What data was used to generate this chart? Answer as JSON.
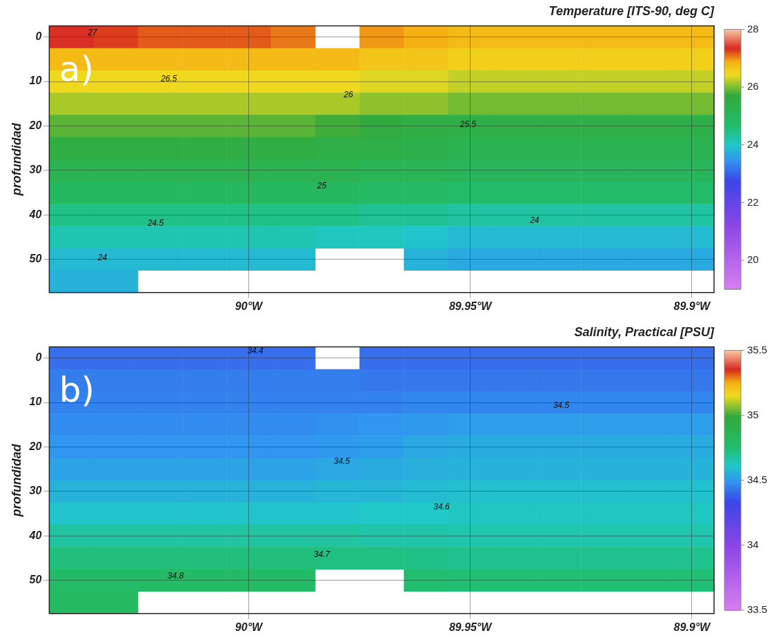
{
  "chart_data": [
    {
      "type": "heatmap",
      "title": "Temperature [ITS-90, deg C]",
      "ylabel": "profundidad",
      "x": [
        -90.04,
        -90.03,
        -90.02,
        -90.01,
        -90.0,
        -89.99,
        -89.98,
        -89.97,
        -89.96,
        -89.95,
        -89.94,
        -89.93,
        -89.92,
        -89.91,
        -89.9
      ],
      "xlim": [
        -90.045,
        -89.895
      ],
      "xticks": [
        {
          "value": -90,
          "label": "90°W"
        },
        {
          "value": -89.95,
          "label": "89.95°W"
        },
        {
          "value": -89.9,
          "label": "89.9°W"
        }
      ],
      "y_categories": [
        "0",
        null,
        "10",
        null,
        "20",
        null,
        "30",
        null,
        "40",
        null,
        "50",
        null
      ],
      "cells": [
        [
          27.4,
          27.3,
          27.2,
          27.2,
          27.2,
          27.1,
          null,
          27.0,
          26.9,
          26.8,
          26.8,
          26.8,
          26.8,
          26.8,
          26.8
        ],
        [
          26.8,
          26.8,
          26.8,
          26.8,
          26.8,
          26.8,
          26.8,
          26.7,
          26.7,
          26.6,
          26.6,
          26.6,
          26.6,
          26.6,
          26.6
        ],
        [
          26.5,
          26.5,
          26.5,
          26.5,
          26.5,
          26.5,
          26.5,
          26.4,
          26.4,
          26.3,
          26.3,
          26.3,
          26.3,
          26.3,
          26.3
        ],
        [
          26.2,
          26.2,
          26.2,
          26.2,
          26.2,
          26.2,
          26.2,
          26.1,
          26.1,
          26.0,
          26.0,
          26.0,
          26.0,
          26.0,
          26.0
        ],
        [
          25.9,
          25.9,
          25.9,
          25.9,
          25.9,
          25.9,
          25.8,
          25.7,
          25.6,
          25.5,
          25.5,
          25.5,
          25.5,
          25.5,
          25.5
        ],
        [
          25.6,
          25.6,
          25.6,
          25.6,
          25.6,
          25.6,
          25.5,
          25.5,
          25.4,
          25.3,
          25.3,
          25.3,
          25.3,
          25.3,
          25.3
        ],
        [
          25.3,
          25.3,
          25.3,
          25.3,
          25.3,
          25.3,
          25.3,
          25.2,
          25.2,
          25.1,
          25.1,
          25.1,
          25.1,
          25.1,
          25.1
        ],
        [
          25.0,
          25.0,
          25.0,
          25.0,
          25.0,
          25.0,
          25.0,
          24.9,
          24.9,
          24.8,
          24.8,
          24.8,
          24.8,
          24.8,
          24.8
        ],
        [
          24.5,
          24.5,
          24.5,
          24.5,
          24.5,
          24.5,
          24.5,
          24.4,
          24.4,
          24.3,
          24.3,
          24.3,
          24.3,
          24.3,
          24.3
        ],
        [
          24.2,
          24.2,
          24.2,
          24.2,
          24.2,
          24.2,
          24.1,
          24.1,
          24.0,
          23.9,
          23.9,
          23.9,
          23.9,
          23.9,
          23.9
        ],
        [
          23.9,
          23.9,
          23.9,
          23.9,
          23.9,
          23.9,
          null,
          null,
          23.8,
          23.7,
          23.7,
          23.7,
          23.7,
          23.7,
          23.7
        ],
        [
          23.8,
          23.8,
          null,
          null,
          null,
          null,
          null,
          null,
          null,
          null,
          null,
          null,
          null,
          null,
          null
        ]
      ],
      "clim": [
        19,
        28
      ],
      "cticks": [
        20,
        22,
        24,
        26,
        28
      ],
      "grid": true,
      "annotations": [
        "a)",
        "27",
        "26.5",
        "26",
        "25.5",
        "25",
        "24.5",
        "24",
        "24"
      ]
    },
    {
      "type": "heatmap",
      "title": "Salinity, Practical [PSU]",
      "ylabel": "profundidad",
      "x": [
        -90.04,
        -90.03,
        -90.02,
        -90.01,
        -90.0,
        -89.99,
        -89.98,
        -89.97,
        -89.96,
        -89.95,
        -89.94,
        -89.93,
        -89.92,
        -89.91,
        -89.9
      ],
      "xlim": [
        -90.045,
        -89.895
      ],
      "xticks": [
        {
          "value": -90,
          "label": "90°W"
        },
        {
          "value": -89.95,
          "label": "89.95°W"
        },
        {
          "value": -89.9,
          "label": "89.9°W"
        }
      ],
      "y_categories": [
        "0",
        null,
        "10",
        null,
        "20",
        null,
        "30",
        null,
        "40",
        null,
        "50",
        null
      ],
      "cells": [
        [
          34.42,
          34.42,
          34.42,
          34.42,
          34.42,
          34.42,
          null,
          34.42,
          34.42,
          34.42,
          34.42,
          34.42,
          34.42,
          34.42,
          34.42
        ],
        [
          34.45,
          34.45,
          34.45,
          34.45,
          34.45,
          34.45,
          34.45,
          34.44,
          34.44,
          34.44,
          34.44,
          34.44,
          34.44,
          34.44,
          34.44
        ],
        [
          34.46,
          34.46,
          34.46,
          34.46,
          34.46,
          34.46,
          34.46,
          34.46,
          34.47,
          34.47,
          34.47,
          34.47,
          34.47,
          34.47,
          34.47
        ],
        [
          34.48,
          34.48,
          34.48,
          34.48,
          34.48,
          34.48,
          34.49,
          34.5,
          34.51,
          34.52,
          34.52,
          34.52,
          34.52,
          34.52,
          34.52
        ],
        [
          34.5,
          34.5,
          34.5,
          34.5,
          34.5,
          34.5,
          34.51,
          34.52,
          34.54,
          34.55,
          34.55,
          34.55,
          34.55,
          34.55,
          34.55
        ],
        [
          34.53,
          34.53,
          34.53,
          34.53,
          34.53,
          34.53,
          34.54,
          34.55,
          34.56,
          34.57,
          34.57,
          34.57,
          34.57,
          34.57,
          34.57
        ],
        [
          34.57,
          34.57,
          34.57,
          34.57,
          34.57,
          34.57,
          34.58,
          34.58,
          34.59,
          34.6,
          34.6,
          34.6,
          34.6,
          34.6,
          34.6
        ],
        [
          34.61,
          34.61,
          34.61,
          34.61,
          34.61,
          34.61,
          34.61,
          34.62,
          34.62,
          34.63,
          34.63,
          34.63,
          34.63,
          34.63,
          34.63
        ],
        [
          34.68,
          34.68,
          34.68,
          34.68,
          34.68,
          34.68,
          34.68,
          34.67,
          34.67,
          34.66,
          34.66,
          34.66,
          34.66,
          34.66,
          34.66
        ],
        [
          34.74,
          34.74,
          34.74,
          34.74,
          34.74,
          34.74,
          34.73,
          34.73,
          34.72,
          34.71,
          34.71,
          34.71,
          34.71,
          34.71,
          34.71
        ],
        [
          34.8,
          34.8,
          34.8,
          34.8,
          34.8,
          34.8,
          null,
          null,
          34.76,
          34.75,
          34.75,
          34.75,
          34.75,
          34.75,
          34.75
        ],
        [
          34.82,
          34.82,
          null,
          null,
          null,
          null,
          null,
          null,
          null,
          null,
          null,
          null,
          null,
          null,
          null
        ]
      ],
      "clim": [
        33.5,
        35.5
      ],
      "cticks": [
        33.5,
        34,
        34.5,
        35,
        35.5
      ],
      "grid": true,
      "annotations": [
        "b)",
        "34.4",
        "34.5",
        "34.5",
        "34.6",
        "34.7",
        "34.8"
      ]
    }
  ]
}
